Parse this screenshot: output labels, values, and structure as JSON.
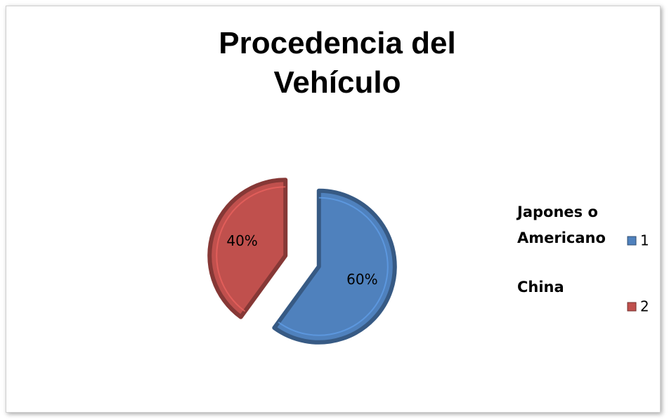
{
  "chart_data": {
    "type": "pie",
    "title": "Procedencia del Vehículo",
    "categories": [
      "1",
      "2"
    ],
    "values": [
      60,
      40
    ],
    "value_labels": [
      "60%",
      "40%"
    ],
    "colors": [
      "#4f81bd",
      "#c0504d"
    ],
    "annotations": [
      "Japones o Americano",
      "China"
    ],
    "exploded": true
  }
}
